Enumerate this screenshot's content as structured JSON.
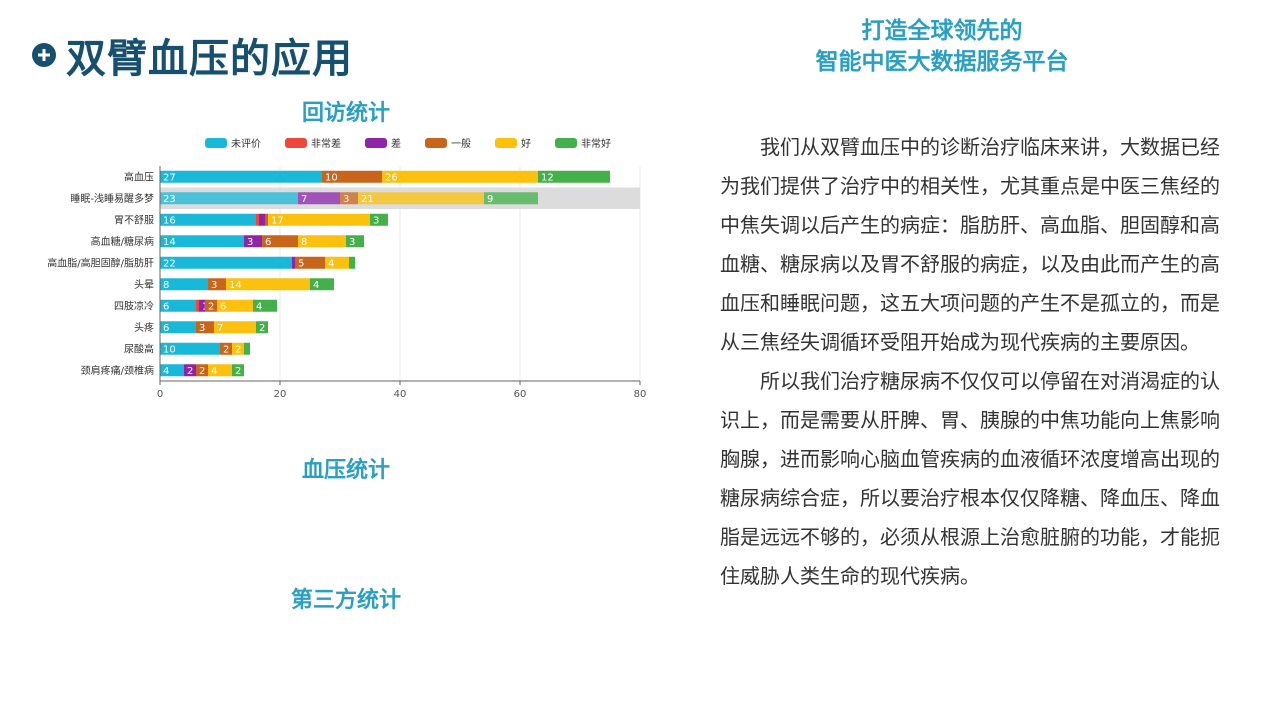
{
  "header": {
    "title": "双臂血压的应用"
  },
  "slogan": {
    "line1": "打造全球领先的",
    "line2": "智能中医大数据服务平台"
  },
  "sections": {
    "visit": "回访统计",
    "bp": "血压统计",
    "third": "第三方统计"
  },
  "paragraphs": [
    "我们从双臂血压中的诊断治疗临床来讲，大数据已经为我们提供了治疗中的相关性，尤其重点是中医三焦经的中焦失调以后产生的病症：脂肪肝、高血脂、胆固醇和高血糖、糖尿病以及胃不舒服的病症，以及由此而产生的高血压和睡眠问题，这五大项问题的产生不是孤立的，而是从三焦经失调循环受阻开始成为现代疾病的主要原因。",
    "所以我们治疗糖尿病不仅仅可以停留在对消渴症的认识上，而是需要从肝脾、胃、胰腺的中焦功能向上焦影响胸腺，进而影响心脑血管疾病的血液循环浓度增高出现的糖尿病综合症，所以要治疗根本仅仅降糖、降血压、降血脂是远远不够的，必须从根源上治愈脏腑的功能，才能扼住威胁人类生命的现代疾病。"
  ],
  "chart_data": {
    "type": "bar",
    "orientation": "horizontal",
    "stacked": true,
    "categories": [
      "高血压",
      "睡眠-浅睡易醒多梦",
      "胃不舒服",
      "高血糖/糖尿病",
      "高血脂/高胆固醇/脂肪肝",
      "头晕",
      "四肢凉冷",
      "头疼",
      "尿酸高",
      "颈肩疼痛/颈椎病"
    ],
    "series": [
      {
        "name": "未评价",
        "color": "#1ab8d8",
        "values": [
          27,
          23,
          16,
          14,
          22,
          8,
          6,
          6,
          10,
          4
        ]
      },
      {
        "name": "非常差",
        "color": "#f0473c",
        "values": [
          0,
          0,
          0.5,
          0,
          0,
          0,
          0.5,
          0,
          0,
          0
        ]
      },
      {
        "name": "差",
        "color": "#8e24aa",
        "values": [
          0,
          7,
          1,
          3,
          0.5,
          0,
          1,
          0,
          0,
          2
        ]
      },
      {
        "name": "一般",
        "color": "#c8651b",
        "values": [
          10,
          3,
          0.5,
          6,
          5,
          3,
          2,
          3,
          2,
          2
        ]
      },
      {
        "name": "好",
        "color": "#fcc00e",
        "values": [
          26,
          21,
          17,
          8,
          4,
          14,
          6,
          7,
          2,
          4
        ]
      },
      {
        "name": "非常好",
        "color": "#43b04a",
        "values": [
          12,
          9,
          3,
          3,
          1,
          4,
          4,
          2,
          1,
          2
        ]
      }
    ],
    "labels": [
      [
        "27",
        "",
        "",
        "10",
        "26",
        "12"
      ],
      [
        "23",
        "",
        "7",
        "3",
        "21",
        "9"
      ],
      [
        "16",
        "",
        "",
        "1",
        "17",
        "3"
      ],
      [
        "14",
        "",
        "3",
        "6",
        "8",
        "3"
      ],
      [
        "22",
        "",
        "",
        "5",
        "4",
        ""
      ],
      [
        "8",
        "",
        "",
        "3",
        "14",
        "4"
      ],
      [
        "6",
        "",
        "1",
        "2",
        "6",
        "4"
      ],
      [
        "6",
        "",
        "",
        "3",
        "7",
        "2"
      ],
      [
        "10",
        "",
        "",
        "2",
        "2",
        ""
      ],
      [
        "4",
        "",
        "2",
        "2",
        "4",
        "2"
      ]
    ],
    "highlighted_category": "睡眠-浅睡易醒多梦",
    "xlim": [
      0,
      80
    ],
    "xticks": [
      "0",
      "20",
      "40",
      "60",
      "80"
    ],
    "legend_position": "top",
    "grid": true
  }
}
